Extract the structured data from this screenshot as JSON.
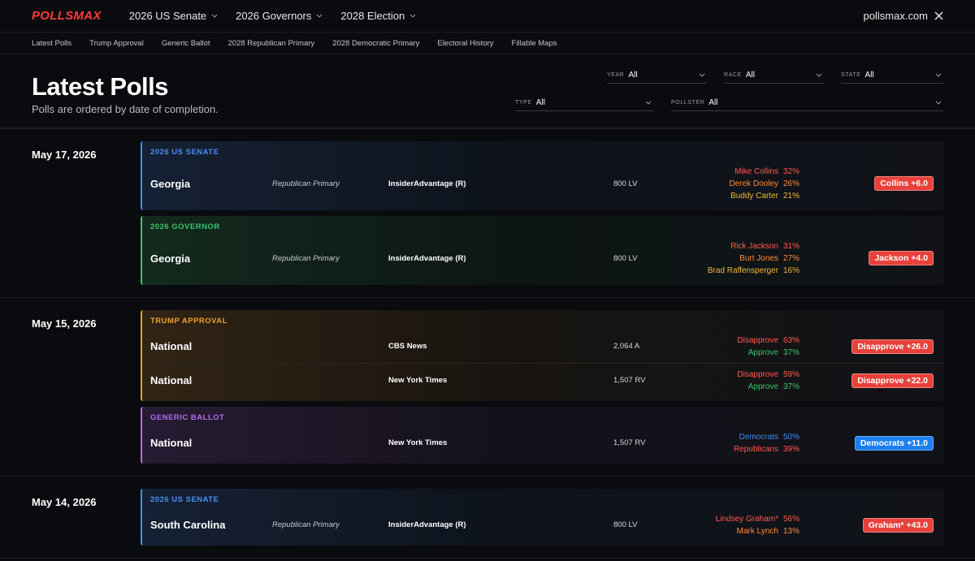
{
  "header": {
    "logo": "POLLSMAX",
    "nav": [
      "2026 US Senate",
      "2026 Governors",
      "2028 Election"
    ],
    "site": "pollsmax.com"
  },
  "subnav": [
    "Latest Polls",
    "Trump Approval",
    "Generic Ballot",
    "2028 Republican Primary",
    "2028 Democratic Primary",
    "Electoral History",
    "Fillable Maps"
  ],
  "title": "Latest Polls",
  "subtitle": "Polls are ordered by date of completion.",
  "filters": [
    {
      "label": "YEAR",
      "value": "All"
    },
    {
      "label": "RACE",
      "value": "All"
    },
    {
      "label": "STATE",
      "value": "All"
    },
    {
      "label": "TYPE",
      "value": "All"
    },
    {
      "label": "POLLSTER",
      "value": "All"
    }
  ],
  "groups": [
    {
      "date": "May 17, 2026",
      "cards": [
        {
          "race": "2026 US SENATE",
          "color": "#4a8df0",
          "rows": [
            {
              "location": "Georgia",
              "type": "Republican Primary",
              "pollster": "InsiderAdvantage (R)",
              "sample": "800 LV",
              "results": [
                {
                  "name": "Mike Collins",
                  "value": "32%",
                  "color": "#ff5a4e"
                },
                {
                  "name": "Derek Dooley",
                  "value": "26%",
                  "color": "#ff8c3a"
                },
                {
                  "name": "Buddy Carter",
                  "value": "21%",
                  "color": "#f5b83d"
                }
              ],
              "spread": "Collins +6.0",
              "spread_color": "#e8413b"
            }
          ]
        },
        {
          "race": "2026 GOVERNOR",
          "color": "#3ec46d",
          "rows": [
            {
              "location": "Georgia",
              "type": "Republican Primary",
              "pollster": "InsiderAdvantage (R)",
              "sample": "800 LV",
              "results": [
                {
                  "name": "Rick Jackson",
                  "value": "31%",
                  "color": "#ff5a4e"
                },
                {
                  "name": "Burt Jones",
                  "value": "27%",
                  "color": "#ff8c3a"
                },
                {
                  "name": "Brad Raffensperger",
                  "value": "16%",
                  "color": "#f5b83d"
                }
              ],
              "spread": "Jackson +4.0",
              "spread_color": "#e8413b"
            }
          ]
        }
      ]
    },
    {
      "date": "May 15, 2026",
      "cards": [
        {
          "race": "TRUMP APPROVAL",
          "color": "#f0a030",
          "rows": [
            {
              "location": "National",
              "pollster": "CBS News",
              "sample": "2,064 A",
              "results": [
                {
                  "name": "Disapprove",
                  "value": "63%",
                  "color": "#ff5a4e"
                },
                {
                  "name": "Approve",
                  "value": "37%",
                  "color": "#3ec46d"
                }
              ],
              "spread": "Disapprove +26.0",
              "spread_color": "#e8413b"
            },
            {
              "location": "National",
              "pollster": "New York Times",
              "sample": "1,507 RV",
              "results": [
                {
                  "name": "Disapprove",
                  "value": "59%",
                  "color": "#ff5a4e"
                },
                {
                  "name": "Approve",
                  "value": "37%",
                  "color": "#3ec46d"
                }
              ],
              "spread": "Disapprove +22.0",
              "spread_color": "#e8413b"
            }
          ]
        },
        {
          "race": "GENERIC BALLOT",
          "color": "#b06ee8",
          "rows": [
            {
              "location": "National",
              "pollster": "New York Times",
              "sample": "1,507 RV",
              "results": [
                {
                  "name": "Democrats",
                  "value": "50%",
                  "color": "#3b8df5"
                },
                {
                  "name": "Republicans",
                  "value": "39%",
                  "color": "#ff5a4e"
                }
              ],
              "spread": "Democrats +11.0",
              "spread_color": "#1d7ff0"
            }
          ]
        }
      ]
    },
    {
      "date": "May 14, 2026",
      "cards": [
        {
          "race": "2026 US SENATE",
          "color": "#4a8df0",
          "rows": [
            {
              "location": "South Carolina",
              "type": "Republican Primary",
              "pollster": "InsiderAdvantage (R)",
              "sample": "800 LV",
              "results": [
                {
                  "name": "Lindsey Graham*",
                  "value": "56%",
                  "color": "#ff5a4e"
                },
                {
                  "name": "Mark Lynch",
                  "value": "13%",
                  "color": "#ff8c3a"
                }
              ],
              "spread": "Graham* +43.0",
              "spread_color": "#e8413b"
            }
          ]
        }
      ]
    }
  ]
}
